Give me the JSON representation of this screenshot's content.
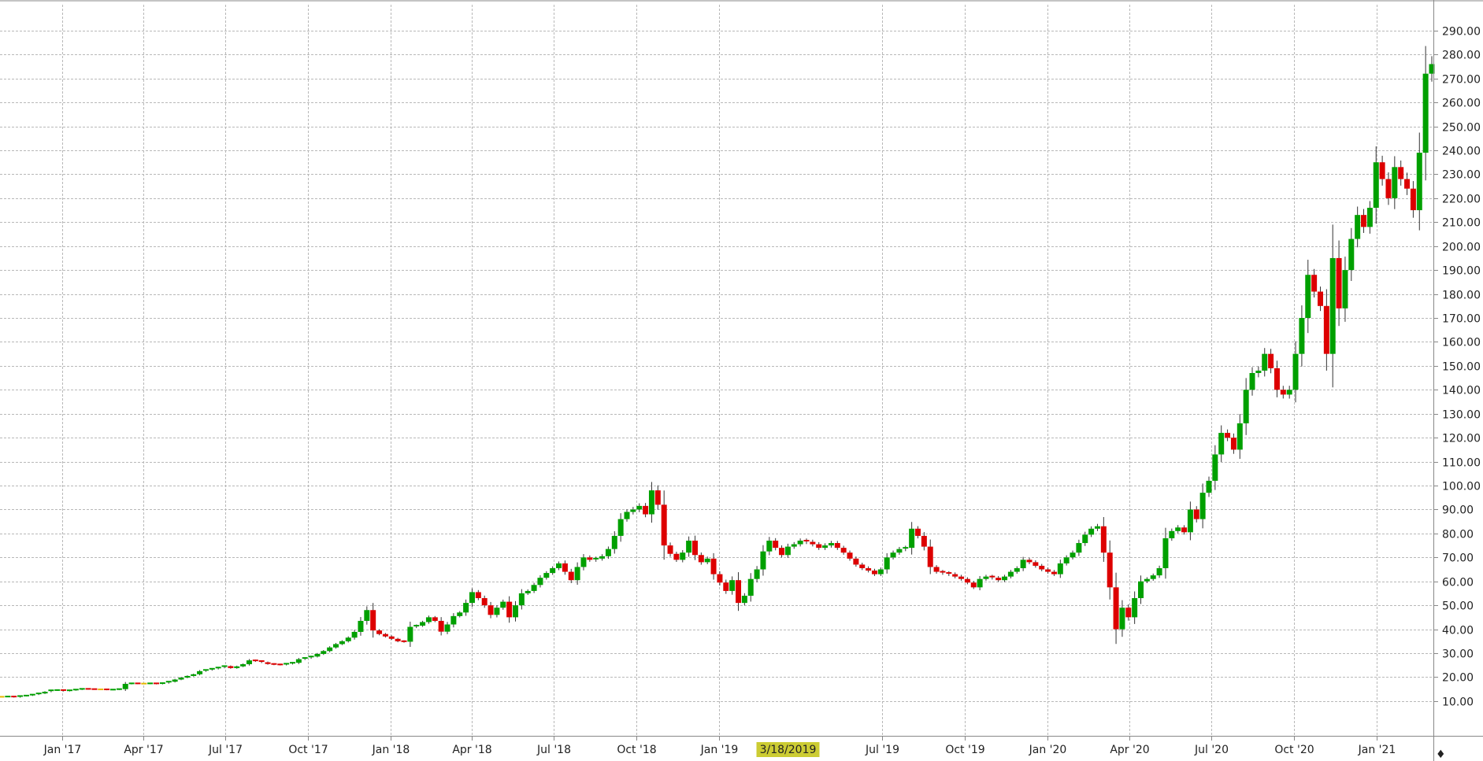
{
  "chart_data": {
    "type": "candlestick",
    "title": "",
    "xlabel": "",
    "ylabel": "",
    "interval": "weekly",
    "ylim": [
      0,
      300
    ],
    "y_axis_side": "right",
    "y_ticks": [
      10,
      20,
      30,
      40,
      50,
      60,
      70,
      80,
      90,
      100,
      110,
      120,
      130,
      140,
      150,
      160,
      170,
      180,
      190,
      200,
      210,
      220,
      230,
      240,
      250,
      260,
      270,
      280,
      290
    ],
    "y_tick_labels": [
      "10.00",
      "20.00",
      "30.00",
      "40.00",
      "50.00",
      "60.00",
      "70.00",
      "80.00",
      "90.00",
      "100.00",
      "110.00",
      "120.00",
      "130.00",
      "140.00",
      "150.00",
      "160.00",
      "170.00",
      "180.00",
      "190.00",
      "200.00",
      "210.00",
      "220.00",
      "230.00",
      "240.00",
      "250.00",
      "260.00",
      "270.00",
      "280.00",
      "290.00"
    ],
    "x_ticks": [
      {
        "label": "Jan '17",
        "date": "2017-01-01"
      },
      {
        "label": "Apr '17",
        "date": "2017-04-01"
      },
      {
        "label": "Jul '17",
        "date": "2017-07-01"
      },
      {
        "label": "Oct '17",
        "date": "2017-10-01"
      },
      {
        "label": "Jan '18",
        "date": "2018-01-01"
      },
      {
        "label": "Apr '18",
        "date": "2018-04-01"
      },
      {
        "label": "Jul '18",
        "date": "2018-07-01"
      },
      {
        "label": "Oct '18",
        "date": "2018-10-01"
      },
      {
        "label": "Jan '19",
        "date": "2019-01-01"
      },
      {
        "label": "3/18/2019",
        "date": "2019-03-18",
        "highlight": true
      },
      {
        "label": "Jul '19",
        "date": "2019-07-01"
      },
      {
        "label": "Oct '19",
        "date": "2019-10-01"
      },
      {
        "label": "Jan '20",
        "date": "2020-01-01"
      },
      {
        "label": "Apr '20",
        "date": "2020-04-01"
      },
      {
        "label": "Jul '20",
        "date": "2020-07-01"
      },
      {
        "label": "Oct '20",
        "date": "2020-10-01"
      },
      {
        "label": "Jan '21",
        "date": "2021-01-01"
      }
    ],
    "grid": true,
    "colors": {
      "up": "#00a000",
      "down": "#dd0000",
      "flat": "#e6b800",
      "grid": "#b8b8b8",
      "axis": "#888888",
      "highlight": "#cccc33"
    },
    "closes": [
      11.8,
      11.9,
      11.6,
      12.1,
      12.3,
      12.7,
      13.2,
      13.9,
      14.5,
      14.6,
      14.2,
      14.5,
      14.8,
      15.1,
      15.0,
      14.9,
      14.9,
      14.7,
      14.8,
      15.0,
      17.2,
      17.4,
      17.3,
      17.3,
      17.4,
      17.2,
      17.5,
      18.1,
      19.0,
      19.8,
      20.5,
      21.2,
      22.5,
      23.0,
      23.5,
      24.0,
      24.6,
      23.8,
      24.5,
      25.4,
      27.0,
      26.7,
      26.2,
      25.5,
      25.3,
      25.2,
      25.6,
      26.0,
      27.5,
      28.0,
      28.6,
      29.7,
      30.9,
      32.4,
      33.8,
      35.0,
      36.5,
      38.9,
      43.5,
      48.0,
      39.5,
      38.0,
      37.0,
      36.0,
      35.0,
      34.8,
      41.0,
      41.5,
      43.0,
      45.0,
      43.5,
      39.0,
      42.0,
      45.5,
      47.0,
      51.0,
      55.5,
      53.0,
      50.0,
      46.0,
      49.0,
      51.5,
      45.0,
      50.0,
      55.0,
      56.0,
      58.5,
      61.5,
      63.5,
      65.5,
      67.5,
      64.0,
      60.5,
      66.0,
      70.0,
      69.0,
      69.5,
      70.5,
      73.5,
      79.0,
      86.0,
      89.0,
      90.0,
      91.5,
      88.0,
      98.0,
      92.0,
      75.0,
      71.5,
      69.0,
      72.0,
      77.0,
      71.0,
      68.0,
      69.5,
      63.0,
      59.5,
      56.0,
      60.5,
      51.0,
      54.0,
      61.0,
      65.0,
      72.5,
      77.0,
      74.0,
      71.0,
      74.5,
      75.5,
      77.0,
      76.5,
      75.5,
      74.0,
      75.0,
      76.0,
      74.0,
      72.0,
      69.5,
      67.0,
      65.5,
      64.5,
      63.0,
      65.0,
      70.0,
      72.0,
      73.5,
      74.0,
      82.0,
      79.0,
      74.5,
      66.0,
      64.0,
      63.5,
      63.0,
      62.0,
      61.0,
      59.5,
      57.5,
      61.0,
      62.0,
      61.5,
      60.5,
      62.0,
      64.0,
      65.5,
      69.0,
      68.0,
      66.5,
      65.0,
      64.0,
      63.0,
      67.5,
      70.0,
      72.0,
      76.0,
      79.5,
      82.0,
      83.0,
      72.0,
      57.5,
      40.0,
      49.0,
      45.0,
      53.0,
      60.0,
      61.0,
      62.5,
      65.5,
      78.0,
      81.0,
      82.5,
      80.5,
      90.0,
      86.0,
      97.0,
      102.0,
      113.0,
      122.0,
      120.0,
      115.0,
      126.0,
      140.0,
      147.0,
      148.0,
      155.0,
      149.0,
      140.0,
      138.0,
      140.0,
      155.0,
      170.0,
      188.0,
      181.0,
      175.0,
      155.0,
      195.0,
      174.0,
      190.0,
      203.0,
      213.0,
      208.0,
      216.0,
      235.0,
      228.0,
      220.0,
      233.0,
      228.0,
      224.0,
      215.0,
      239.0,
      272.0,
      276.0
    ]
  },
  "highlight_label": "3/18/2019"
}
